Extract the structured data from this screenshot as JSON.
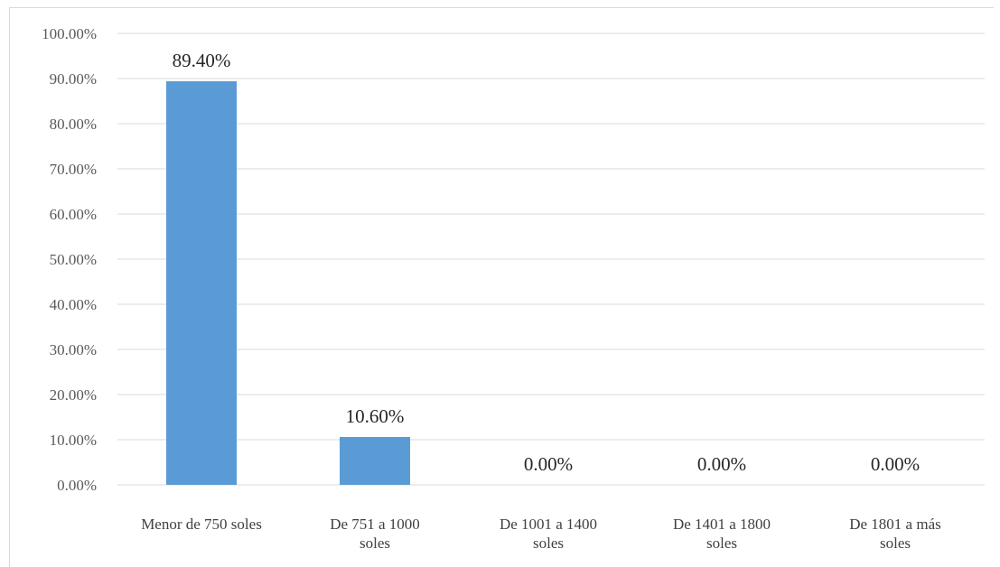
{
  "chart_data": {
    "type": "bar",
    "title": "",
    "xlabel": "",
    "ylabel": "",
    "ylim": [
      0,
      100
    ],
    "y_ticks": [
      "0.00%",
      "10.00%",
      "20.00%",
      "30.00%",
      "40.00%",
      "50.00%",
      "60.00%",
      "70.00%",
      "80.00%",
      "90.00%",
      "100.00%"
    ],
    "categories": [
      [
        "Menor de 750 soles"
      ],
      [
        "De 751 a 1000",
        "soles"
      ],
      [
        "De 1001 a 1400",
        "soles"
      ],
      [
        "De 1401 a 1800",
        "soles"
      ],
      [
        "De 1801 a más",
        "soles"
      ]
    ],
    "values": [
      89.4,
      10.6,
      0,
      0,
      0
    ],
    "data_labels": [
      "89.40%",
      "10.60%",
      "0.00%",
      "0.00%",
      "0.00%"
    ],
    "bar_color": "#5b9bd5",
    "grid_color": "#d9d9d9",
    "grid": true,
    "legend": "none"
  }
}
